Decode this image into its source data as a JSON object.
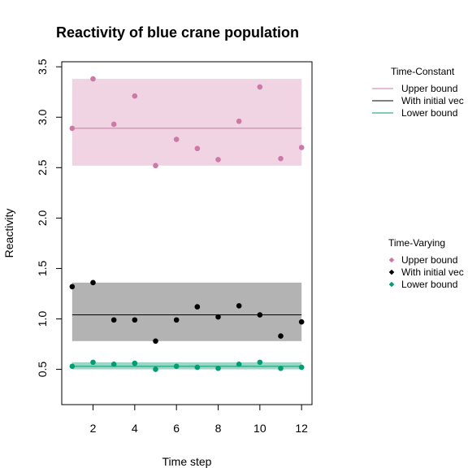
{
  "chart_data": {
    "type": "scatter",
    "title": "Reactivity of blue crane population",
    "xlabel": "Time step",
    "ylabel": "Reactivity",
    "xlim": [
      0.5,
      12.5
    ],
    "ylim": [
      0.15,
      3.55
    ],
    "x_ticks": [
      2,
      4,
      6,
      8,
      10,
      12
    ],
    "x_tick_labels": [
      "2",
      "4",
      "6",
      "8",
      "10",
      "12"
    ],
    "y_ticks": [
      0.5,
      1.0,
      1.5,
      2.0,
      2.5,
      3.0,
      3.5
    ],
    "y_tick_labels": [
      "0.5",
      "1.0",
      "1.5",
      "2.0",
      "2.5",
      "3.0",
      "3.5"
    ],
    "grid": false,
    "x": [
      1,
      2,
      3,
      4,
      5,
      6,
      7,
      8,
      9,
      10,
      11,
      12
    ],
    "series": [
      {
        "name": "Upper bound",
        "color": "#cc79a7",
        "band_color": "#f0d4e4",
        "constant": 2.89,
        "band": [
          2.52,
          3.38
        ],
        "values": [
          2.89,
          3.38,
          2.93,
          3.21,
          2.52,
          2.78,
          2.69,
          2.58,
          2.96,
          3.3,
          2.59,
          2.7
        ]
      },
      {
        "name": "With initial vector",
        "color": "#000000",
        "band_color": "#b3b3b3",
        "constant": 1.04,
        "band": [
          0.78,
          1.36
        ],
        "values": [
          1.32,
          1.36,
          0.99,
          0.99,
          0.78,
          0.99,
          1.12,
          1.02,
          1.13,
          1.04,
          0.83,
          0.97
        ]
      },
      {
        "name": "Lower bound",
        "color": "#009e73",
        "band_color": "#9dd6c5",
        "constant": 0.53,
        "band": [
          0.5,
          0.57
        ],
        "values": [
          0.53,
          0.57,
          0.55,
          0.56,
          0.5,
          0.53,
          0.52,
          0.51,
          0.55,
          0.57,
          0.51,
          0.52
        ]
      }
    ],
    "legends": [
      {
        "title": "Time-Constant",
        "symbol": "line",
        "placement": "right-top",
        "entries": [
          "Upper bound",
          "With initial vec",
          "Lower bound"
        ]
      },
      {
        "title": "Time-Varying",
        "symbol": "point",
        "placement": "right-middle",
        "entries": [
          "Upper bound",
          "With initial vec",
          "Lower bound"
        ]
      }
    ]
  }
}
